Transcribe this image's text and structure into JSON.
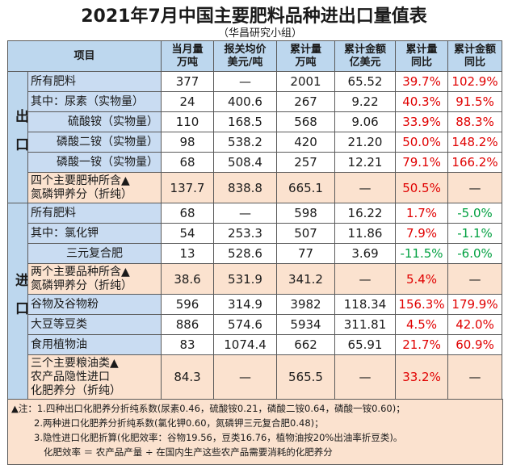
{
  "title": "2021年7月中国主要肥料品种进出口量值表",
  "subtitle": "（华昌研究小组）",
  "table": {
    "header": [
      [
        "项目"
      ],
      [
        "当月量",
        "万吨"
      ],
      [
        "报关均价",
        "美元/吨"
      ],
      [
        "累计量",
        "万吨"
      ],
      [
        "累计金额",
        "亿美元"
      ],
      [
        "累计量",
        "同比"
      ],
      [
        "累计金额",
        "同比"
      ]
    ],
    "sections": [
      {
        "label": "出口",
        "rows": [
          {
            "item": [
              "所有肥料"
            ],
            "cells": [
              "377",
              "—",
              "2001",
              "65.52",
              "39.7%",
              "102.9%"
            ]
          },
          {
            "item": [
              "其中：尿素（实物量）"
            ],
            "cells": [
              "24",
              "400.6",
              "267",
              "9.22",
              "40.3%",
              "91.5%"
            ]
          },
          {
            "item": [
              "硫酸铵（实物量）"
            ],
            "cells": [
              "110",
              "168.5",
              "568",
              "9.06",
              "33.9%",
              "88.3%"
            ]
          },
          {
            "item": [
              "磷酸二铵（实物量）"
            ],
            "cells": [
              "98",
              "538.2",
              "420",
              "21.20",
              "50.0%",
              "148.2%"
            ]
          },
          {
            "item": [
              "磷酸一铵（实物量）"
            ],
            "cells": [
              "68",
              "508.4",
              "257",
              "12.21",
              "79.1%",
              "166.2%"
            ]
          },
          {
            "item": [
              "四个主要肥种所含▲",
              "氮磷钾养分（折纯）"
            ],
            "cells": [
              "137.7",
              "838.8",
              "665.1",
              "—",
              "50.5%",
              "—"
            ]
          }
        ]
      },
      {
        "label": "进口",
        "rows": [
          {
            "item": [
              "所有肥料"
            ],
            "cells": [
              "68",
              "—",
              "598",
              "16.22",
              "1.7%",
              "-5.0%"
            ]
          },
          {
            "item": [
              "其中：氯化钾"
            ],
            "cells": [
              "54",
              "253.3",
              "507",
              "11.86",
              "7.9%",
              "-1.1%"
            ]
          },
          {
            "item": [
              "三元复合肥"
            ],
            "cells": [
              "13",
              "528.6",
              "77",
              "3.69",
              "-11.5%",
              "-6.0%"
            ]
          },
          {
            "item": [
              "两个主要品种所含▲",
              "氮磷钾养分（折纯）"
            ],
            "cells": [
              "38.6",
              "531.9",
              "341.2",
              "—",
              "5.4%",
              "—"
            ]
          },
          {
            "item": [
              "谷物及谷物粉"
            ],
            "cells": [
              "596",
              "314.9",
              "3982",
              "118.34",
              "156.3%",
              "179.9%"
            ]
          },
          {
            "item": [
              "大豆等豆类"
            ],
            "cells": [
              "886",
              "574.6",
              "5934",
              "311.81",
              "4.5%",
              "42.0%"
            ]
          },
          {
            "item": [
              "食用植物油"
            ],
            "cells": [
              "83",
              "1074.4",
              "662",
              "65.91",
              "21.7%",
              "60.9%"
            ]
          },
          {
            "item": [
              "三个主要粮油类▲",
              "农产品隐性进口",
              "化肥养分（折纯）"
            ],
            "cells": [
              "84.3",
              "—",
              "565.5",
              "—",
              "33.2%",
              "—"
            ]
          }
        ]
      }
    ]
  },
  "notes": [
    "▲注：1.四种出口化肥养分折纯系数(尿素0.46，硫酸铵0.21，磷酸二铵0.64，磷酸一铵0.60)；",
    "2.两种进口化肥养分折纯系数(氯化钾0.60，氮磷钾三元复合肥0.48)；",
    "3.隐性进口化肥折算(化肥效率：谷物19.56，豆类16.76，植物油按20%出油率折豆类)。",
    "化肥效率 ＝ 农产品产量 ÷ 在国内生产这些农产品需要消耗的化肥养分"
  ]
}
